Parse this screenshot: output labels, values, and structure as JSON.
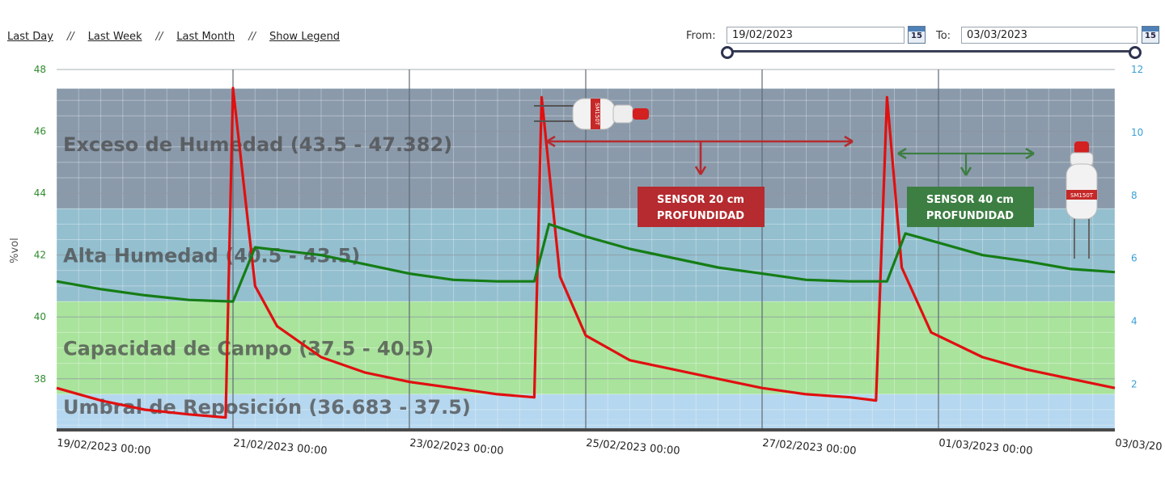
{
  "nav": {
    "last_day": "Last Day",
    "last_week": "Last Week",
    "last_month": "Last Month",
    "show_legend": "Show Legend",
    "separator": "//"
  },
  "date_range": {
    "from_label": "From:",
    "from_value": "19/02/2023",
    "to_label": "To:",
    "to_value": "03/03/2023",
    "calendar_icon_text": "15"
  },
  "colors": {
    "sensor_20cm": "#e01010",
    "sensor_40cm": "#157d15",
    "band_exceso": "#8a9aab",
    "band_alta": "#93bfcf",
    "band_capacidad": "#a9e39c",
    "band_umbral": "#b5d7ef",
    "annotation_red": "#b52b2f",
    "annotation_green": "#3d7e43"
  },
  "chart_data": {
    "type": "line",
    "ylabel": "%vol",
    "ylim": [
      36.4,
      48
    ],
    "y_ticks": [
      "38",
      "40",
      "42",
      "44",
      "46",
      "48"
    ],
    "y2lim": [
      0.6,
      12
    ],
    "y2_ticks": [
      "2",
      "4",
      "6",
      "8",
      "10",
      "12"
    ],
    "x_ticks": [
      "19/02/2023 00:00",
      "21/02/2023 00:00",
      "23/02/2023 00:00",
      "25/02/2023 00:00",
      "27/02/2023 00:00",
      "01/03/2023 00:00",
      "03/03/20"
    ],
    "bands": [
      {
        "label": "Exceso de Humedad  (43.5 - 47.382)",
        "from": 43.5,
        "to": 47.382
      },
      {
        "label": "Alta Humedad (40.5 - 43.5)",
        "from": 40.5,
        "to": 43.5
      },
      {
        "label": "Capacidad de Campo (37.5 - 40.5)",
        "from": 37.5,
        "to": 40.5
      },
      {
        "label": "Umbral de Reposición (36.683 - 37.5)",
        "from": 36.683,
        "to": 37.5
      }
    ],
    "series": [
      {
        "key": "sensor_20cm",
        "x": [
          "2023-02-19 00:00",
          "2023-02-19 12:00",
          "2023-02-20 00:00",
          "2023-02-20 12:00",
          "2023-02-20 22:00",
          "2023-02-21 00:00",
          "2023-02-21 06:00",
          "2023-02-21 12:00",
          "2023-02-22 00:00",
          "2023-02-22 12:00",
          "2023-02-23 00:00",
          "2023-02-23 12:00",
          "2023-02-24 00:00",
          "2023-02-24 10:00",
          "2023-02-24 12:00",
          "2023-02-24 17:00",
          "2023-02-25 00:00",
          "2023-02-25 12:00",
          "2023-02-26 00:00",
          "2023-02-26 12:00",
          "2023-02-27 00:00",
          "2023-02-27 12:00",
          "2023-02-28 00:00",
          "2023-02-28 07:00",
          "2023-02-28 10:00",
          "2023-02-28 14:00",
          "2023-02-28 22:00",
          "2023-03-01 12:00",
          "2023-03-02 00:00",
          "2023-03-02 12:00",
          "2023-03-03 00:00"
        ],
        "y": [
          37.7,
          37.3,
          37.0,
          36.85,
          36.75,
          47.4,
          41.0,
          39.7,
          38.7,
          38.2,
          37.9,
          37.7,
          37.5,
          37.4,
          47.1,
          41.3,
          39.4,
          38.6,
          38.3,
          38.0,
          37.7,
          37.5,
          37.4,
          37.3,
          47.1,
          41.6,
          39.5,
          38.7,
          38.3,
          38.0,
          37.7
        ]
      },
      {
        "key": "sensor_40cm",
        "x": [
          "2023-02-19 00:00",
          "2023-02-19 12:00",
          "2023-02-20 00:00",
          "2023-02-20 12:00",
          "2023-02-21 00:00",
          "2023-02-21 06:00",
          "2023-02-22 00:00",
          "2023-02-22 12:00",
          "2023-02-23 00:00",
          "2023-02-23 12:00",
          "2023-02-24 00:00",
          "2023-02-24 10:00",
          "2023-02-24 14:00",
          "2023-02-25 00:00",
          "2023-02-25 12:00",
          "2023-02-26 00:00",
          "2023-02-26 12:00",
          "2023-02-27 00:00",
          "2023-02-27 12:00",
          "2023-02-28 00:00",
          "2023-02-28 10:00",
          "2023-02-28 15:00",
          "2023-03-01 00:00",
          "2023-03-01 12:00",
          "2023-03-02 00:00",
          "2023-03-02 12:00",
          "2023-03-03 00:00"
        ],
        "y": [
          41.15,
          40.9,
          40.7,
          40.55,
          40.5,
          42.25,
          42.0,
          41.7,
          41.4,
          41.2,
          41.15,
          41.15,
          43.0,
          42.6,
          42.2,
          41.9,
          41.6,
          41.4,
          41.2,
          41.15,
          41.15,
          42.7,
          42.4,
          42.0,
          41.8,
          41.55,
          41.45
        ]
      }
    ],
    "annotations": [
      {
        "key": "sensor_20cm",
        "label": "SENSOR 20 cm PROFUNDIDAD",
        "sensor_label": "SM150T"
      },
      {
        "key": "sensor_40cm",
        "label": "SENSOR 40 cm PROFUNDIDAD",
        "sensor_label": "SM150T"
      }
    ]
  }
}
